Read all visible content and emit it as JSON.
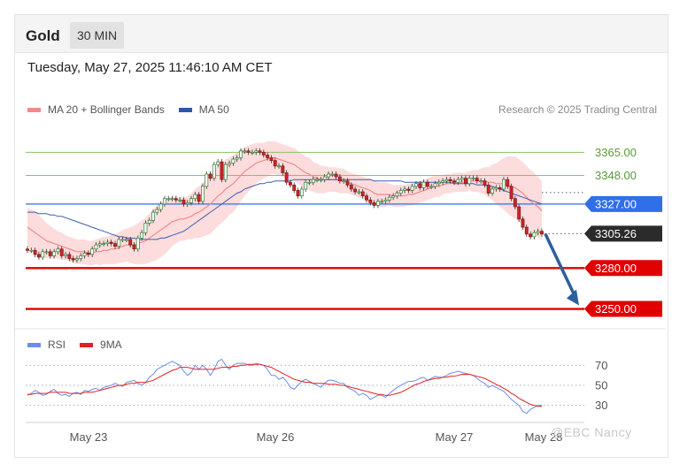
{
  "header": {
    "asset": "Gold",
    "timeframe": "30 MIN"
  },
  "timestamp": "Tuesday, May 27, 2025 11:46:10 AM CET",
  "credit": "Research © 2025 Trading Central",
  "watermark": "@EBC  Nancy",
  "legend_main": [
    {
      "label": "MA 20 + Bollinger Bands",
      "color": "#f28b8b"
    },
    {
      "label": "MA 50",
      "color": "#2f57a3"
    }
  ],
  "legend_rsi": [
    {
      "label": "RSI",
      "color": "#6b8ee8"
    },
    {
      "label": "9MA",
      "color": "#e02020"
    }
  ],
  "colors": {
    "bull": "#2b2b2b",
    "support": "#e00000",
    "pivot": "#2f6fe8",
    "resistance": "#8ac06a",
    "current": "#2b2b2b",
    "arrow": "#2d5f9e"
  },
  "chart_data": [
    {
      "type": "candlestick",
      "ylim": [
        3238,
        3386
      ],
      "x_ticks": [
        "May 23",
        "May 26",
        "May 27",
        "May 28"
      ],
      "levels": [
        {
          "value": 3365.0,
          "label": "3365.00",
          "kind": "resistance"
        },
        {
          "value": 3348.0,
          "label": "3348.00",
          "kind": "resistance"
        },
        {
          "value": 3327.0,
          "label": "3327.00",
          "kind": "pivot"
        },
        {
          "value": 3305.26,
          "label": "3305.26",
          "kind": "current"
        },
        {
          "value": 3280.0,
          "label": "3280.00",
          "kind": "support"
        },
        {
          "value": 3250.0,
          "label": "3250.00",
          "kind": "support"
        }
      ],
      "arrow": {
        "from": 3305,
        "to": 3250
      },
      "close": [
        3293,
        3293,
        3290,
        3288,
        3292,
        3292,
        3289,
        3292,
        3294,
        3289,
        3290,
        3287,
        3286,
        3287,
        3289,
        3291,
        3290,
        3294,
        3297,
        3298,
        3298,
        3299,
        3298,
        3296,
        3301,
        3301,
        3301,
        3297,
        3294,
        3302,
        3306,
        3313,
        3315,
        3321,
        3323,
        3327,
        3331,
        3331,
        3331,
        3330,
        3330,
        3327,
        3328,
        3331,
        3334,
        3329,
        3340,
        3349,
        3346,
        3356,
        3358,
        3345,
        3356,
        3357,
        3360,
        3361,
        3366,
        3366,
        3365,
        3365,
        3366,
        3365,
        3363,
        3361,
        3359,
        3355,
        3355,
        3350,
        3343,
        3341,
        3337,
        3333,
        3338,
        3343,
        3343,
        3345,
        3345,
        3345,
        3347,
        3349,
        3349,
        3347,
        3344,
        3344,
        3341,
        3338,
        3336,
        3336,
        3333,
        3330,
        3328,
        3326,
        3329,
        3329,
        3330,
        3332,
        3333,
        3335,
        3337,
        3338,
        3337,
        3340,
        3342,
        3339,
        3343,
        3340,
        3340,
        3342,
        3343,
        3344,
        3345,
        3344,
        3343,
        3345,
        3346,
        3342,
        3346,
        3346,
        3344,
        3344,
        3341,
        3335,
        3338,
        3339,
        3338,
        3345,
        3340,
        3331,
        3325,
        3316,
        3310,
        3305,
        3303,
        3306,
        3307,
        3305
      ],
      "ma20": [
        3310,
        3308,
        3306,
        3304,
        3302,
        3300,
        3299,
        3298,
        3297,
        3296,
        3295,
        3294,
        3293,
        3292,
        3292,
        3292,
        3291,
        3291,
        3292,
        3292,
        3293,
        3293,
        3294,
        3294,
        3295,
        3296,
        3297,
        3297,
        3297,
        3298,
        3299,
        3300,
        3302,
        3304,
        3306,
        3308,
        3310,
        3312,
        3314,
        3315,
        3316,
        3316,
        3317,
        3318,
        3320,
        3321,
        3323,
        3325,
        3327,
        3330,
        3333,
        3335,
        3338,
        3340,
        3342,
        3345,
        3348,
        3351,
        3353,
        3355,
        3357,
        3358,
        3359,
        3360,
        3361,
        3361,
        3360,
        3359,
        3358,
        3357,
        3356,
        3354,
        3352,
        3350,
        3349,
        3347,
        3346,
        3345,
        3345,
        3345,
        3345,
        3345,
        3344,
        3344,
        3343,
        3342,
        3341,
        3340,
        3339,
        3338,
        3337,
        3335,
        3334,
        3334,
        3334,
        3334,
        3333,
        3333,
        3333,
        3333,
        3334,
        3334,
        3335,
        3336,
        3337,
        3338,
        3339,
        3340,
        3340,
        3341,
        3342,
        3342,
        3343,
        3343,
        3343,
        3343,
        3344,
        3344,
        3344,
        3344,
        3344,
        3343,
        3343,
        3342,
        3342,
        3342,
        3341,
        3340,
        3339,
        3337,
        3335,
        3332,
        3329,
        3327,
        3325,
        3322
      ],
      "bb_width": [
        14,
        15,
        16,
        15,
        14,
        13,
        12,
        11,
        10,
        10,
        9,
        9,
        9,
        9,
        9,
        9,
        9,
        9,
        9,
        10,
        10,
        10,
        11,
        11,
        11,
        12,
        12,
        13,
        14,
        15,
        16,
        17,
        18,
        19,
        20,
        20,
        20,
        19,
        18,
        17,
        16,
        16,
        16,
        17,
        18,
        19,
        20,
        21,
        22,
        22,
        22,
        22,
        22,
        21,
        21,
        20,
        19,
        18,
        17,
        16,
        15,
        14,
        13,
        13,
        12,
        12,
        12,
        12,
        12,
        12,
        12,
        12,
        12,
        12,
        12,
        11,
        11,
        10,
        10,
        9,
        9,
        9,
        9,
        9,
        8,
        8,
        8,
        8,
        8,
        8,
        9,
        9,
        9,
        9,
        9,
        8,
        8,
        8,
        8,
        8,
        8,
        8,
        8,
        8,
        8,
        8,
        8,
        8,
        8,
        7,
        7,
        7,
        7,
        7,
        7,
        7,
        7,
        8,
        8,
        9,
        10,
        11,
        13,
        15,
        17,
        19,
        21,
        22,
        23,
        23,
        23,
        23,
        23,
        23,
        22,
        22
      ],
      "ma50": [
        3321,
        3321,
        3321,
        3320,
        3320,
        3320,
        3319,
        3319,
        3318,
        3318,
        3317,
        3316,
        3315,
        3314,
        3313,
        3312,
        3311,
        3310,
        3309,
        3308,
        3307,
        3306,
        3305,
        3304,
        3303,
        3303,
        3302,
        3302,
        3302,
        3301,
        3301,
        3301,
        3301,
        3301,
        3301,
        3302,
        3302,
        3303,
        3304,
        3305,
        3306,
        3307,
        3309,
        3311,
        3313,
        3315,
        3317,
        3319,
        3321,
        3323,
        3325,
        3327,
        3329,
        3331,
        3333,
        3335,
        3336,
        3338,
        3339,
        3340,
        3341,
        3342,
        3342,
        3343,
        3343,
        3344,
        3344,
        3344,
        3344,
        3344,
        3345,
        3345,
        3345,
        3345,
        3345,
        3345,
        3345,
        3345,
        3345,
        3345,
        3345,
        3345,
        3345,
        3345,
        3345,
        3345,
        3345,
        3345,
        3345,
        3345,
        3345,
        3344,
        3344,
        3344,
        3344,
        3344,
        3344,
        3344,
        3344,
        3343,
        3343,
        3343,
        3343,
        3343,
        3343,
        3343,
        3343,
        3343,
        3343,
        3343,
        3343,
        3343,
        3342,
        3342,
        3342,
        3342,
        3342,
        3342,
        3341,
        3341,
        3341,
        3340,
        3340,
        3339,
        3338,
        3337,
        3336,
        3335,
        3334,
        3333,
        3332,
        3331,
        3330,
        3329,
        3328,
        3327
      ]
    },
    {
      "type": "line",
      "ylim": [
        20,
        80
      ],
      "y_ticks": [
        "70",
        "50",
        "30"
      ],
      "rsi": [
        40,
        42,
        45,
        43,
        40,
        41,
        44,
        46,
        42,
        40,
        41,
        39,
        42,
        43,
        41,
        45,
        44,
        46,
        47,
        45,
        48,
        49,
        50,
        52,
        50,
        49,
        53,
        54,
        55,
        52,
        50,
        53,
        58,
        61,
        66,
        68,
        70,
        72,
        74,
        72,
        70,
        64,
        60,
        63,
        70,
        66,
        70,
        66,
        60,
        66,
        74,
        76,
        70,
        66,
        70,
        72,
        72,
        72,
        70,
        70,
        72,
        71,
        70,
        66,
        60,
        60,
        56,
        58,
        54,
        48,
        46,
        50,
        54,
        56,
        54,
        52,
        50,
        48,
        52,
        55,
        55,
        54,
        52,
        52,
        48,
        46,
        44,
        40,
        42,
        40,
        36,
        38,
        40,
        40,
        38,
        42,
        45,
        48,
        50,
        52,
        54,
        54,
        55,
        57,
        58,
        55,
        57,
        59,
        58,
        58,
        60,
        62,
        63,
        64,
        63,
        62,
        61,
        60,
        57,
        54,
        52,
        48,
        50,
        48,
        46,
        44,
        40,
        36,
        33,
        30,
        24,
        22,
        26,
        28,
        30,
        30
      ],
      "ma9": [
        41,
        41,
        42,
        42,
        42,
        42,
        43,
        43,
        43,
        43,
        43,
        42,
        42,
        42,
        42,
        43,
        43,
        43,
        44,
        45,
        46,
        47,
        48,
        49,
        50,
        50,
        51,
        52,
        52,
        53,
        53,
        53,
        54,
        55,
        57,
        59,
        61,
        63,
        65,
        66,
        68,
        68,
        68,
        67,
        66,
        66,
        66,
        66,
        66,
        66,
        67,
        68,
        68,
        68,
        69,
        69,
        70,
        70,
        71,
        71,
        71,
        71,
        70,
        69,
        68,
        66,
        64,
        62,
        60,
        58,
        56,
        55,
        54,
        53,
        53,
        52,
        52,
        52,
        52,
        51,
        51,
        51,
        50,
        50,
        49,
        48,
        47,
        46,
        45,
        44,
        43,
        42,
        41,
        41,
        40,
        40,
        41,
        42,
        43,
        45,
        47,
        49,
        51,
        52,
        54,
        55,
        56,
        57,
        57,
        58,
        58,
        59,
        59,
        60,
        61,
        61,
        61,
        60,
        59,
        58,
        57,
        55,
        53,
        51,
        49,
        47,
        45,
        42,
        40,
        37,
        35,
        33,
        31,
        30,
        29,
        29
      ]
    }
  ]
}
